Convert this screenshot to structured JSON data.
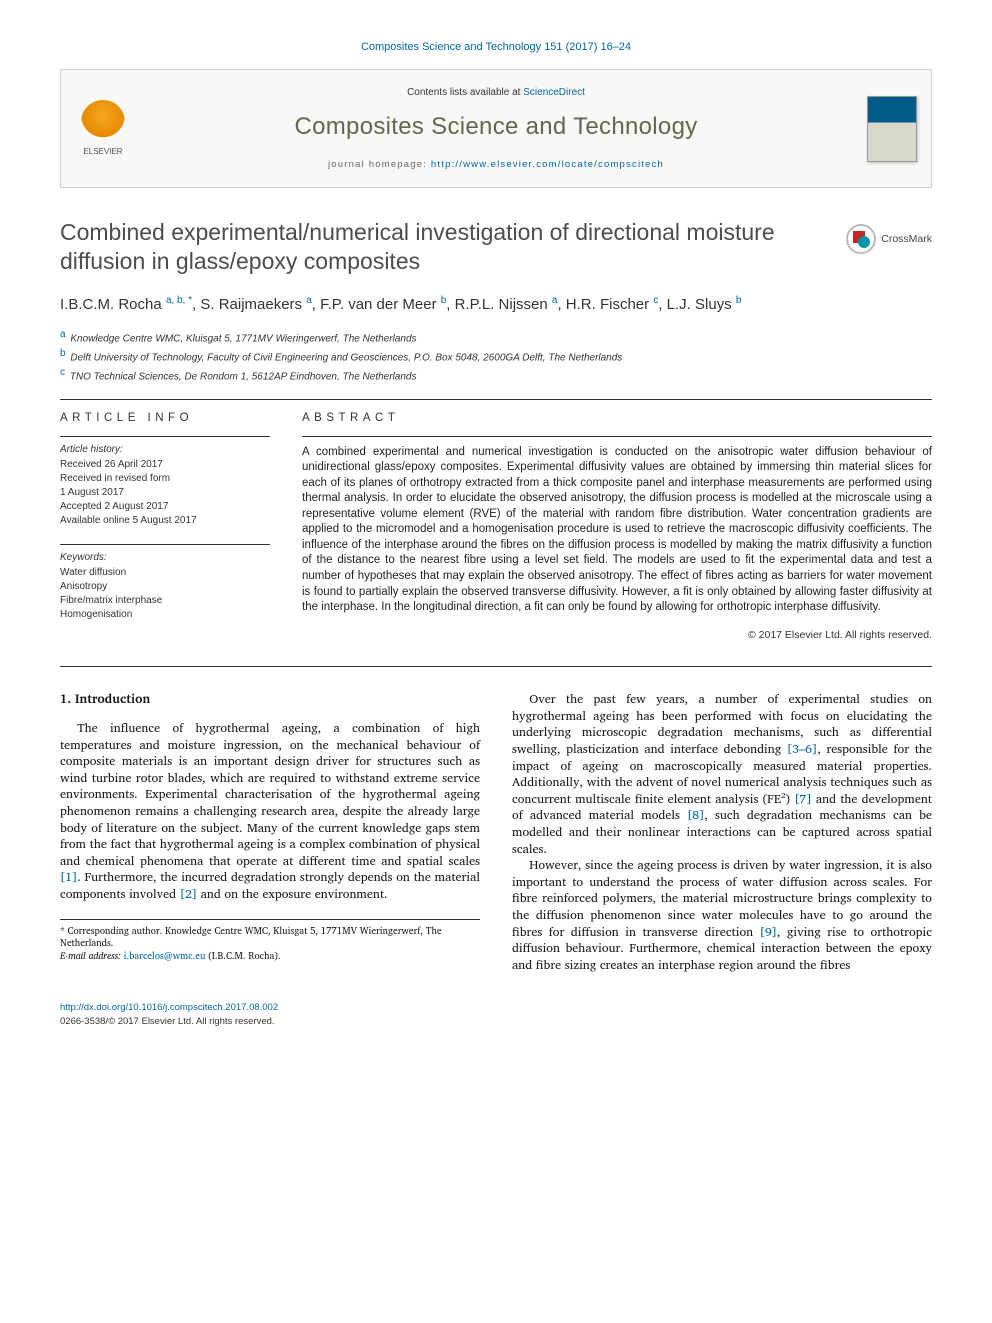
{
  "banner": "Composites Science and Technology 151 (2017) 16–24",
  "header": {
    "contents_prefix": "Contents lists available at ",
    "contents_link": "ScienceDirect",
    "journal_name": "Composites Science and Technology",
    "homepage_prefix": "journal homepage: ",
    "homepage_url": "http://www.elsevier.com/locate/compscitech",
    "publisher_name": "ELSEVIER"
  },
  "article": {
    "title": "Combined experimental/numerical investigation of directional moisture diffusion in glass/epoxy composites",
    "crossmark_label": "CrossMark",
    "authors_html": "I.B.C.M. Rocha <span class='sup'>a, b, *</span>, S. Raijmaekers <span class='sup'>a</span>, F.P. van der Meer <span class='sup'>b</span>, R.P.L. Nijssen <span class='sup'>a</span>, H.R. Fischer <span class='sup'>c</span>, L.J. Sluys <span class='sup'>b</span>",
    "affiliations": [
      {
        "key": "a",
        "text": "Knowledge Centre WMC, Kluisgat 5, 1771MV Wieringerwerf, The Netherlands"
      },
      {
        "key": "b",
        "text": "Delft University of Technology, Faculty of Civil Engineering and Geosciences, P.O. Box 5048, 2600GA Delft, The Netherlands"
      },
      {
        "key": "c",
        "text": "TNO Technical Sciences, De Rondom 1, 5612AP Eindhoven, The Netherlands"
      }
    ]
  },
  "info": {
    "heading": "ARTICLE INFO",
    "history_label": "Article history:",
    "history": [
      "Received 26 April 2017",
      "Received in revised form",
      "1 August 2017",
      "Accepted 2 August 2017",
      "Available online 5 August 2017"
    ],
    "keywords_label": "Keywords:",
    "keywords": [
      "Water diffusion",
      "Anisotropy",
      "Fibre/matrix interphase",
      "Homogenisation"
    ]
  },
  "abstract": {
    "heading": "ABSTRACT",
    "text": "A combined experimental and numerical investigation is conducted on the anisotropic water diffusion behaviour of unidirectional glass/epoxy composites. Experimental diffusivity values are obtained by immersing thin material slices for each of its planes of orthotropy extracted from a thick composite panel and interphase measurements are performed using thermal analysis. In order to elucidate the observed anisotropy, the diffusion process is modelled at the microscale using a representative volume element (RVE) of the material with random fibre distribution. Water concentration gradients are applied to the micromodel and a homogenisation procedure is used to retrieve the macroscopic diffusivity coefficients. The influence of the interphase around the fibres on the diffusion process is modelled by making the matrix diffusivity a function of the distance to the nearest fibre using a level set field. The models are used to fit the experimental data and test a number of hypotheses that may explain the observed anisotropy. The effect of fibres acting as barriers for water movement is found to partially explain the observed transverse diffusivity. However, a fit is only obtained by allowing faster diffusivity at the interphase. In the longitudinal direction, a fit can only be found by allowing for orthotropic interphase diffusivity.",
    "copyright": "© 2017 Elsevier Ltd. All rights reserved."
  },
  "body": {
    "heading": "1. Introduction",
    "col1_p1": "The influence of hygrothermal ageing, a combination of high temperatures and moisture ingression, on the mechanical behaviour of composite materials is an important design driver for structures such as wind turbine rotor blades, which are required to withstand extreme service environments. Experimental characterisation of the hygrothermal ageing phenomenon remains a challenging research area, despite the already large body of literature on the subject. Many of the current knowledge gaps stem from the fact that hygrothermal ageing is a complex combination of physical and chemical phenomena that operate at different time and spatial scales [1]. Furthermore, the incurred degradation strongly depends on the material components involved [2] and on the exposure environment.",
    "col2_p1": "Over the past few years, a number of experimental studies on hygrothermal ageing has been performed with focus on elucidating the underlying microscopic degradation mechanisms, such as differential swelling, plasticization and interface debonding [3–6], responsible for the impact of ageing on macroscopically measured material properties. Additionally, with the advent of novel numerical analysis techniques such as concurrent multiscale finite element analysis (FE²) [7] and the development of advanced material models [8], such degradation mechanisms can be modelled and their nonlinear interactions can be captured across spatial scales.",
    "col2_p2": "However, since the ageing process is driven by water ingression, it is also important to understand the process of water diffusion across scales. For fibre reinforced polymers, the material microstructure brings complexity to the diffusion phenomenon since water molecules have to go around the fibres for diffusion in transverse direction [9], giving rise to orthotropic diffusion behaviour. Furthermore, chemical interaction between the epoxy and fibre sizing creates an interphase region around the fibres"
  },
  "footnote": {
    "corr": "* Corresponding author. Knowledge Centre WMC, Kluisgat 5, 1771MV Wieringerwerf, The Netherlands.",
    "email_label": "E-mail address:",
    "email": "i.barcelos@wmc.eu",
    "email_suffix": "(I.B.C.M. Rocha)."
  },
  "bottom": {
    "doi": "http://dx.doi.org/10.1016/j.compscitech.2017.08.002",
    "issn_copy": "0266-3538/© 2017 Elsevier Ltd. All rights reserved."
  },
  "colors": {
    "link": "#0066a6",
    "journal_title": "#656551",
    "text": "#1a1a1a",
    "border": "#333333"
  }
}
